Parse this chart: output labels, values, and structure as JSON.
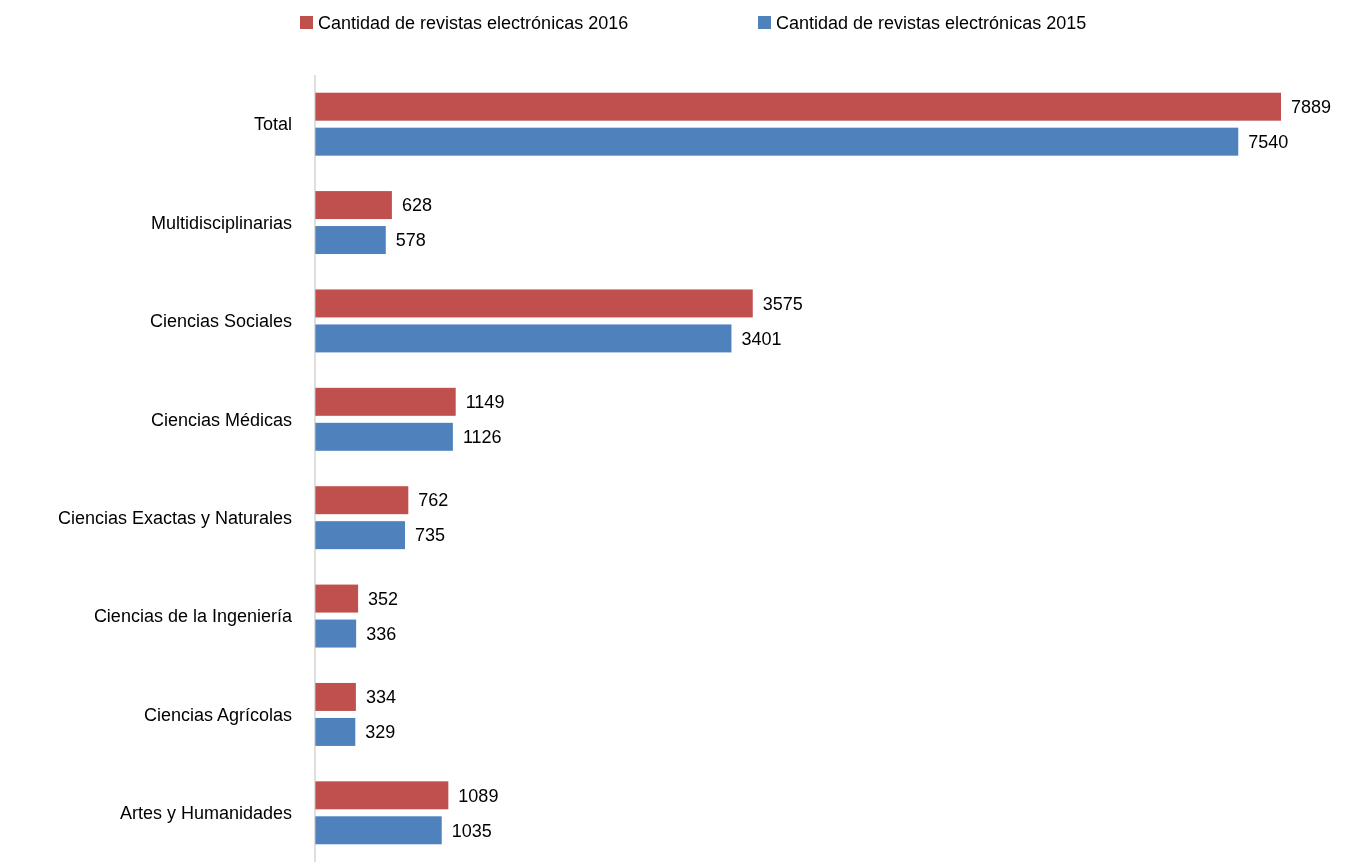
{
  "chart_data": {
    "type": "bar",
    "orientation": "horizontal",
    "categories": [
      "Total",
      "Multidisciplinarias",
      "Ciencias Sociales",
      "Ciencias Médicas",
      "Ciencias Exactas y Naturales",
      "Ciencias de la Ingeniería",
      "Ciencias Agrícolas",
      "Artes y Humanidades"
    ],
    "series": [
      {
        "name": "Cantidad de revistas electrónicas 2016",
        "color": "#c0504d",
        "values": [
          7889,
          628,
          3575,
          1149,
          762,
          352,
          334,
          1089
        ]
      },
      {
        "name": "Cantidad de revistas electrónicas 2015",
        "color": "#4f81bd",
        "values": [
          7540,
          578,
          3401,
          1126,
          735,
          336,
          329,
          1035
        ]
      }
    ],
    "data_labels": true,
    "legend": "top"
  }
}
